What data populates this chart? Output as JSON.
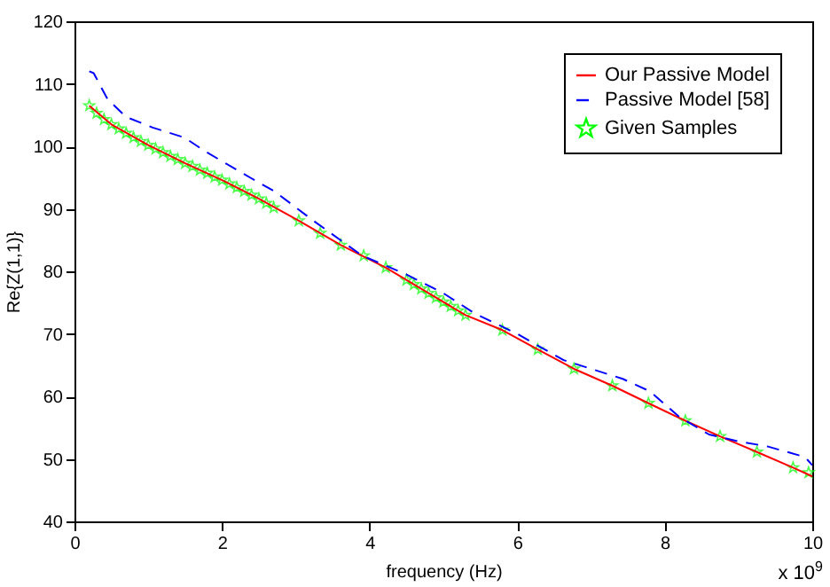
{
  "chart_data": {
    "type": "line",
    "xlabel": "frequency (Hz)",
    "ylabel": "Re{Z(1,1)}",
    "annotations": [
      "x 10$^{9}$"
    ],
    "xlim": [
      0,
      10
    ],
    "xticks": [
      0,
      2,
      4,
      6,
      8,
      10
    ],
    "ylim": [
      40,
      120
    ],
    "yticks": [
      40,
      50,
      60,
      70,
      80,
      90,
      100,
      110,
      120
    ],
    "grid": false,
    "legend": "top right",
    "series": [
      {
        "name": "Our Passive Model",
        "color": "#ff0000",
        "type": "line",
        "line_style": "solid",
        "x": [
          0.2,
          0.5,
          1.0,
          1.5,
          2.0,
          2.5,
          3.04,
          3.61,
          4.22,
          4.8,
          5.3,
          5.8,
          6.28,
          6.77,
          7.29,
          7.78,
          8.28,
          8.75,
          9.25,
          9.74,
          10
        ],
        "values": [
          106.5,
          103.5,
          100.2,
          97.3,
          94.6,
          91.6,
          88.1,
          84.2,
          80.6,
          76.5,
          73.0,
          70.6,
          67.5,
          64.4,
          61.7,
          58.9,
          56.1,
          53.6,
          51.1,
          48.6,
          47.2
        ]
      },
      {
        "name": "Passive Model [58]",
        "color": "#0000ff",
        "type": "line",
        "line_style": "dashed",
        "x": [
          0.2,
          0.26,
          0.45,
          0.7,
          1.06,
          1.49,
          1.77,
          2.38,
          2.71,
          3.25,
          3.9,
          4.5,
          5.0,
          5.42,
          6.0,
          6.63,
          7.43,
          7.8,
          8.2,
          8.6,
          9.0,
          9.39,
          9.9,
          10
        ],
        "values": [
          112,
          111.7,
          107.5,
          104.7,
          103,
          101.4,
          99.2,
          95,
          92.8,
          88,
          82.5,
          79.5,
          76.5,
          73.3,
          70,
          65.8,
          62.8,
          60.8,
          56.7,
          53.9,
          52.8,
          52,
          50.3,
          49
        ]
      },
      {
        "name": "Given Samples",
        "color": "#00ff00",
        "type": "scatter",
        "marker": "star",
        "x": [
          0.2,
          0.3,
          0.4,
          0.5,
          0.6,
          0.7,
          0.8,
          0.9,
          1.0,
          1.1,
          1.2,
          1.3,
          1.4,
          1.5,
          1.6,
          1.7,
          1.8,
          1.9,
          2.0,
          2.1,
          2.2,
          2.3,
          2.4,
          2.5,
          2.6,
          2.7,
          3.04,
          3.33,
          3.61,
          3.92,
          4.22,
          4.5,
          4.6,
          4.7,
          4.8,
          4.9,
          5.0,
          5.1,
          5.2,
          5.3,
          5.8,
          6.28,
          6.77,
          7.29,
          7.78,
          8.28,
          8.75,
          9.25,
          9.74,
          9.95
        ],
        "values": [
          106.5,
          105.3,
          104.3,
          103.5,
          102.8,
          102.1,
          101.4,
          100.8,
          100.2,
          99.6,
          99.0,
          98.4,
          97.9,
          97.3,
          96.8,
          96.2,
          95.7,
          95.1,
          94.6,
          94.0,
          93.4,
          92.8,
          92.2,
          91.6,
          90.9,
          90.2,
          88.1,
          86.1,
          84.2,
          82.5,
          80.6,
          78.6,
          77.9,
          77.2,
          76.5,
          75.8,
          75.1,
          74.4,
          73.7,
          73.0,
          70.6,
          67.5,
          64.4,
          61.7,
          58.9,
          56.1,
          53.6,
          51.1,
          48.6,
          47.8
        ]
      }
    ]
  }
}
